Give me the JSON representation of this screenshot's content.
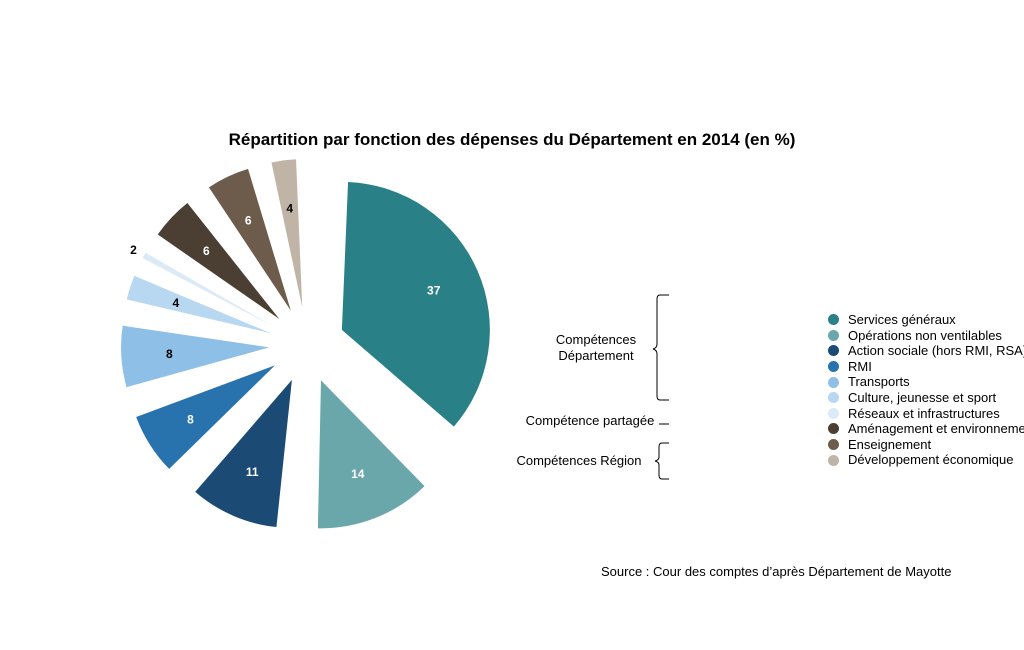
{
  "chart_data": {
    "type": "pie",
    "title": "Répartition par fonction des dépenses du Département en 2014 (en %)",
    "unit": "%",
    "exploded": true,
    "slices": [
      {
        "label": "Services généraux",
        "value": 37,
        "color": "#2a8087",
        "label_color": "#ffffff"
      },
      {
        "label": "Opérations non ventilables",
        "value": 14,
        "color": "#6aa7ab",
        "label_color": "#ffffff"
      },
      {
        "label": "Action sociale (hors RMI, RSA)",
        "value": 11,
        "color": "#1b4b74",
        "label_color": "#ffffff"
      },
      {
        "label": "RMI",
        "value": 8,
        "color": "#2872ae",
        "label_color": "#ffffff"
      },
      {
        "label": "Transports",
        "value": 8,
        "color": "#8ebfe6",
        "label_color": "#000000"
      },
      {
        "label": "Culture, jeunesse et sport",
        "value": 4,
        "color": "#b8d8f1",
        "label_color": "#000000"
      },
      {
        "label": "Réseaux et infrastructures",
        "value": 2,
        "color": "#dce9f6",
        "label_color": "#000000"
      },
      {
        "label": "Aménagement et environnement",
        "value": 6,
        "color": "#4b3e33",
        "label_color": "#ffffff"
      },
      {
        "label": "Enseignement",
        "value": 6,
        "color": "#6d5c4b",
        "label_color": "#ffffff"
      },
      {
        "label": "Développement économique",
        "value": 4,
        "color": "#c0b4a6",
        "label_color": "#000000"
      }
    ],
    "legend_position": "right",
    "groups": [
      {
        "label": "Compétences Département",
        "lines": [
          "Compétences",
          "Département"
        ]
      },
      {
        "label": "Compétence partagée",
        "lines": [
          "Compétence partagée"
        ]
      },
      {
        "label": "Compétences Région",
        "lines": [
          "Compétences Région"
        ]
      }
    ],
    "source": "Source : Cour des comptes d’après Département de Mayotte"
  }
}
